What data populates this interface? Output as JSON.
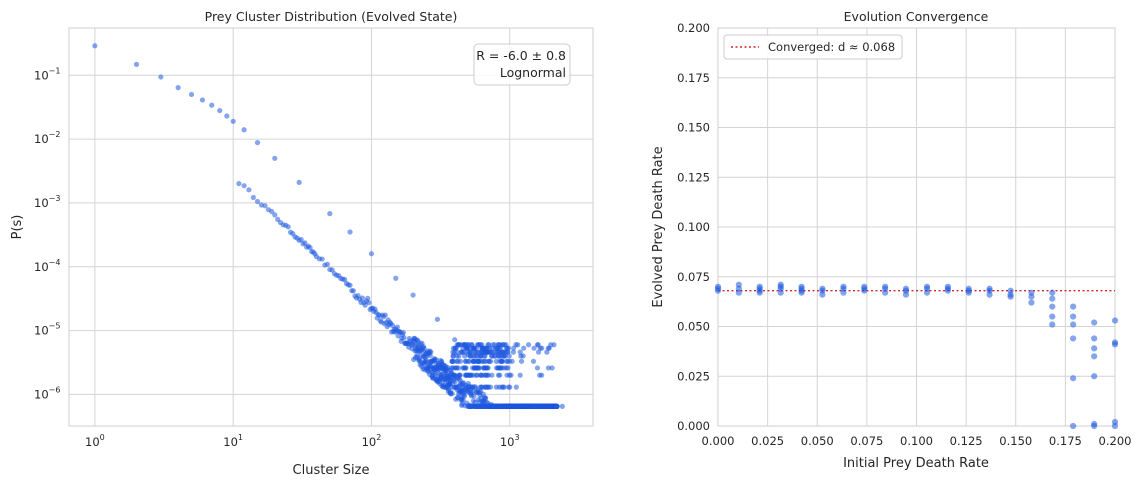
{
  "colors": {
    "points": "#1f5ae0",
    "reference_line": "#d62728",
    "grid": "#d4d4d4",
    "frame": "#cfcfcf"
  },
  "chart_data": [
    {
      "type": "scatter",
      "title": "Prey Cluster Distribution (Evolved State)",
      "xlabel": "Cluster Size",
      "ylabel": "P(s)",
      "x_scale": "log",
      "y_scale": "log",
      "xlim": [
        0.65,
        4000
      ],
      "ylim": [
        3.2e-07,
        0.55
      ],
      "x_tick_labels": [
        "10",
        "10",
        "10",
        "10"
      ],
      "x_tick_exponents": [
        "0",
        "1",
        "2",
        "3"
      ],
      "x_tick_values": [
        1,
        10,
        100,
        1000
      ],
      "y_tick_labels": [
        "10",
        "10",
        "10",
        "10",
        "10",
        "10"
      ],
      "y_tick_exponents": [
        "−6",
        "−5",
        "−4",
        "−3",
        "−2",
        "−1"
      ],
      "y_tick_values": [
        1e-06,
        1e-05,
        0.0001,
        0.001,
        0.01,
        0.1
      ],
      "grid": true,
      "annotation": {
        "placement": "top-right",
        "lines": [
          "R = -6.0 ± 0.8",
          "Lognormal"
        ]
      },
      "series": [
        {
          "power_law_fit": {
            "amplitude": 0.29,
            "exponent": -2.05
          },
          "x_range": [
            1,
            2500
          ],
          "floor_level": 6.5e-07,
          "points": [
            [
              1,
              0.29
            ],
            [
              2,
              0.148
            ],
            [
              3,
              0.094
            ],
            [
              4,
              0.064
            ],
            [
              5,
              0.05
            ],
            [
              6,
              0.041
            ],
            [
              7,
              0.034
            ],
            [
              8,
              0.028
            ],
            [
              9,
              0.023
            ],
            [
              10,
              0.019
            ],
            [
              12,
              0.014
            ],
            [
              15,
              0.0088
            ],
            [
              20,
              0.005
            ],
            [
              30,
              0.0021
            ],
            [
              50,
              0.00068
            ],
            [
              70,
              0.00035
            ],
            [
              100,
              0.00016
            ],
            [
              150,
              6.6e-05
            ],
            [
              200,
              3.6e-05
            ],
            [
              300,
              1.5e-05
            ],
            [
              400,
              7.2e-06
            ],
            [
              500,
              4.2e-06
            ],
            [
              600,
              2.6e-06
            ],
            [
              700,
              2e-06
            ],
            [
              800,
              1.3e-06
            ],
            [
              1000,
              1.3e-06
            ],
            [
              1500,
              6.5e-07
            ],
            [
              2400,
              6.5e-07
            ]
          ]
        }
      ]
    },
    {
      "type": "scatter",
      "title": "Evolution Convergence",
      "xlabel": "Initial Prey Death Rate",
      "ylabel": "Evolved Prey Death Rate",
      "xlim": [
        0.0,
        0.2
      ],
      "ylim": [
        0.0,
        0.2
      ],
      "x_tick_labels": [
        "0.000",
        "0.025",
        "0.050",
        "0.075",
        "0.100",
        "0.125",
        "0.150",
        "0.175",
        "0.200"
      ],
      "x_tick_values": [
        0.0,
        0.025,
        0.05,
        0.075,
        0.1,
        0.125,
        0.15,
        0.175,
        0.2
      ],
      "y_tick_labels": [
        "0.000",
        "0.025",
        "0.050",
        "0.075",
        "0.100",
        "0.125",
        "0.150",
        "0.175",
        "0.200"
      ],
      "y_tick_values": [
        0.0,
        0.025,
        0.05,
        0.075,
        0.1,
        0.125,
        0.15,
        0.175,
        0.2
      ],
      "grid": true,
      "legend": {
        "placement": "top-left",
        "entries": [
          "Converged: d ≈ 0.068"
        ]
      },
      "reference_line": {
        "y": 0.068,
        "style": "dotted"
      },
      "series": [
        {
          "points": [
            [
              0.0,
              0.07
            ],
            [
              0.0,
              0.069
            ],
            [
              0.0,
              0.068
            ],
            [
              0.0105,
              0.071
            ],
            [
              0.0105,
              0.069
            ],
            [
              0.0105,
              0.067
            ],
            [
              0.021,
              0.07
            ],
            [
              0.021,
              0.069
            ],
            [
              0.021,
              0.068
            ],
            [
              0.021,
              0.067
            ],
            [
              0.0316,
              0.071
            ],
            [
              0.0316,
              0.07
            ],
            [
              0.0316,
              0.069
            ],
            [
              0.0316,
              0.067
            ],
            [
              0.0421,
              0.07
            ],
            [
              0.0421,
              0.069
            ],
            [
              0.0421,
              0.068
            ],
            [
              0.0421,
              0.067
            ],
            [
              0.0526,
              0.069
            ],
            [
              0.0526,
              0.068
            ],
            [
              0.0526,
              0.066
            ],
            [
              0.0632,
              0.07
            ],
            [
              0.0632,
              0.069
            ],
            [
              0.0632,
              0.067
            ],
            [
              0.0737,
              0.07
            ],
            [
              0.0737,
              0.069
            ],
            [
              0.0737,
              0.068
            ],
            [
              0.0842,
              0.07
            ],
            [
              0.0842,
              0.069
            ],
            [
              0.0842,
              0.067
            ],
            [
              0.0947,
              0.069
            ],
            [
              0.0947,
              0.068
            ],
            [
              0.0947,
              0.066
            ],
            [
              0.1053,
              0.07
            ],
            [
              0.1053,
              0.069
            ],
            [
              0.1053,
              0.067
            ],
            [
              0.1158,
              0.07
            ],
            [
              0.1158,
              0.069
            ],
            [
              0.1158,
              0.068
            ],
            [
              0.1263,
              0.069
            ],
            [
              0.1263,
              0.068
            ],
            [
              0.1263,
              0.067
            ],
            [
              0.1368,
              0.069
            ],
            [
              0.1368,
              0.068
            ],
            [
              0.1368,
              0.066
            ],
            [
              0.1474,
              0.068
            ],
            [
              0.1474,
              0.066
            ],
            [
              0.1474,
              0.065
            ],
            [
              0.1579,
              0.067
            ],
            [
              0.1579,
              0.065
            ],
            [
              0.1579,
              0.062
            ],
            [
              0.1684,
              0.067
            ],
            [
              0.1684,
              0.064
            ],
            [
              0.1684,
              0.06
            ],
            [
              0.1684,
              0.055
            ],
            [
              0.1684,
              0.051
            ],
            [
              0.1789,
              0.06
            ],
            [
              0.1789,
              0.055
            ],
            [
              0.1789,
              0.051
            ],
            [
              0.1789,
              0.044
            ],
            [
              0.1789,
              0.024
            ],
            [
              0.1789,
              0.0
            ],
            [
              0.1895,
              0.052
            ],
            [
              0.1895,
              0.044
            ],
            [
              0.1895,
              0.039
            ],
            [
              0.1895,
              0.035
            ],
            [
              0.1895,
              0.025
            ],
            [
              0.1895,
              0.001
            ],
            [
              0.1895,
              0.0
            ],
            [
              0.2,
              0.053
            ],
            [
              0.2,
              0.042
            ],
            [
              0.2,
              0.041
            ],
            [
              0.2,
              0.002
            ],
            [
              0.2,
              0.0
            ]
          ]
        }
      ]
    }
  ]
}
